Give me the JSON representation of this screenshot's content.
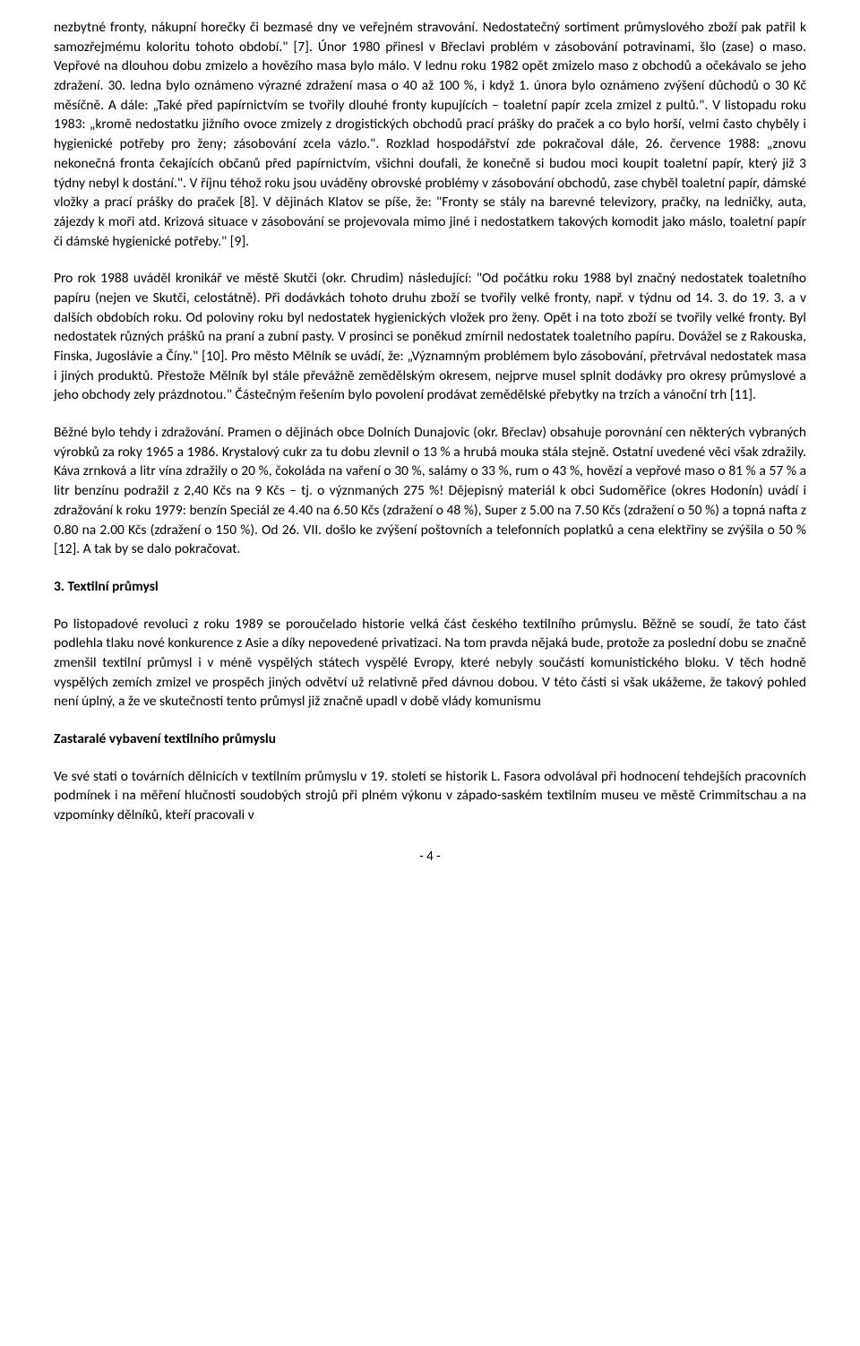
{
  "paragraphs": {
    "p1": "nezbytné fronty, nákupní horečky či bezmasé dny ve veřejném stravování. Nedostatečný sortiment průmyslového zboží pak patřil k samozřejmému koloritu tohoto období.\" [7]. Únor 1980 přinesl v Břeclavi problém v zásobování potravinami, šlo (zase) o maso. Vepřové na dlouhou dobu zmizelo a hovězího masa bylo málo. V lednu roku 1982 opět zmizelo maso z obchodů a očekávalo se jeho zdražení. 30. ledna bylo oznámeno výrazné zdražení masa o 40 až 100 %, i když 1. února bylo oznámeno zvýšení důchodů o 30 Kč měsíčně. A dále: „Také před papírnictvím se tvořily dlouhé fronty kupujících – toaletní papír zcela zmizel z pultů.\". V listopadu roku 1983: „kromě nedostatku jižního ovoce zmizely z drogistických obchodů prací prášky do praček a co bylo horší, velmi často chyběly i hygienické potřeby pro ženy; zásobování zcela vázlo.\". Rozklad hospodářství zde pokračoval dále, 26. července 1988: „znovu nekonečná fronta čekajících občanů před papírnictvím, všichni doufali, že konečně si budou moci koupit toaletní papír, který již 3 týdny nebyl k dostání.\". V říjnu téhož roku jsou uváděny obrovské problémy v zásobování obchodů, zase chyběl toaletní papír, dámské vložky a prací prášky do praček [8]. V dějinách Klatov se píše, že: \"Fronty se stály na barevné televizory, pračky, na ledničky, auta, zájezdy k moři atd. Krizová situace v zásobování se projevovala mimo jiné i nedostatkem takových komodit jako máslo, toaletní papír či dámské hygienické potřeby.\" [9].",
    "p2": "Pro rok 1988 uváděl kronikář ve městě Skutči (okr. Chrudim) následující: \"Od počátku roku 1988 byl značný nedostatek toaletního papíru (nejen ve Skutči, celostátně). Při dodávkách tohoto druhu zboží se tvořily velké fronty, např. v týdnu od 14. 3. do 19. 3. a v dalších obdobích roku. Od poloviny roku byl nedostatek hygienických vložek pro ženy. Opět i na toto zboží se tvořily velké fronty. Byl nedostatek různých prášků na praní a zubní pasty. V prosinci se poněkud zmírnil nedostatek toaletního papíru. Dovážel se z Rakouska, Finska, Jugoslávie a Číny.\" [10]. Pro město Mělník se uvádí, že: „Významným problémem bylo zásobování, přetrvával nedostatek masa i jiných produktů. Přestože Mělník byl stále převážně zemědělským okresem, nejprve musel splnit dodávky pro okresy průmyslové a jeho obchody zely prázdnotou.\" Částečným řešením bylo povolení prodávat zemědělské přebytky na trzích a vánoční trh [11].",
    "p3": "Běžné bylo tehdy i zdražování. Pramen o dějinách obce Dolních Dunajovic (okr. Břeclav) obsahuje porovnání cen některých vybraných výrobků za roky 1965 a 1986. Krystalový cukr za tu dobu zlevnil o 13 % a hrubá mouka stála stejně. Ostatní uvedené věci však zdražily. Káva zrnková a litr vína zdražily o 20 %, čokoláda na vaření o 30 %, salámy o 33 %, rum o 43 %, hovězí a vepřové maso o 81 % a 57 % a litr benzínu podražil z 2,40 Kčs na 9 Kčs – tj. o význmaných 275 %! Dějepisný materiál k obci Sudoměřice (okres Hodonín) uvádí i zdražování k roku 1979: benzín Speciál ze 4.40 na 6.50 Kčs (zdražení o 48 %), Super z 5.00 na 7.50 Kčs (zdražení o 50 %) a topná nafta z 0.80 na 2.00 Kčs (zdražení o 150 %). Od 26. VII. došlo ke zvýšení poštovních a telefonních poplatků a cena elektřiny se zvýšila o 50 % [12]. A tak by se dalo pokračovat.",
    "heading1": "3. Textilní průmysl",
    "p4": "Po listopadové revoluci z roku 1989 se poroučelado historie velká část českého textilního průmyslu. Běžně se soudí, že tato část podlehla tlaku nové konkurence z Asie a díky nepovedené privatizaci. Na tom pravda nějaká bude, protože za poslední dobu se značně zmenšil textilní průmysl i v méně vyspělých státech vyspělé Evropy, které nebyly součástí komunistického bloku. V těch hodně vyspělých zemích zmizel ve prospěch jiných odvětví už relativně před dávnou dobou. V této části si však ukážeme, že takový pohled není úplný, a že ve skutečnosti tento průmysl již značně upadl v době vlády komunismu",
    "heading2": "Zastaralé vybavení textilního průmyslu",
    "p5": "Ve své stati o továrních dělnicích v textilním průmyslu v 19. století se historik L. Fasora odvolával při hodnocení tehdejších pracovních podmínek i na měření hlučnosti soudobých strojů při plném výkonu v západo-saském textilním museu ve městě Crimmitschau a na vzpomínky dělníků, kteří pracovali v",
    "page_number": "- 4 -"
  }
}
